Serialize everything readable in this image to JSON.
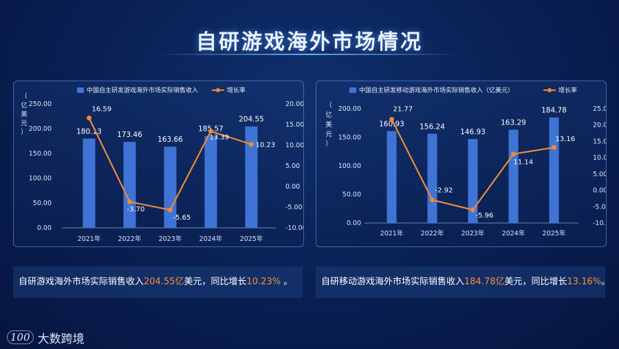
{
  "page": {
    "title": "自研游戏海外市场情况",
    "logo_text": "大数跨境",
    "logo_mark": "100"
  },
  "colors": {
    "bar": "#3f74d6",
    "line": "#ef8a36",
    "highlight": "#f3913a"
  },
  "captions": [
    {
      "pre": "自研游戏海外市场实际销售收入",
      "hl1": "204.55亿",
      "mid": "美元，同比增长",
      "hl2": "10.23%",
      "post": " 。"
    },
    {
      "pre": "自研移动游戏海外市场实际销售收入",
      "hl1": "184.78亿",
      "mid": "美元，同比增长",
      "hl2": "13.16%",
      "post": "。"
    }
  ],
  "chart_data": [
    {
      "type": "bar",
      "title": "",
      "ylabel": "（亿美元）",
      "categories": [
        "2021年",
        "2022年",
        "2023年",
        "2024年",
        "2025年"
      ],
      "series": [
        {
          "name": "中国自主研发游戏海外市场实际销售收入",
          "type": "bar",
          "values": [
            180.13,
            173.46,
            163.66,
            185.57,
            204.55
          ],
          "axis": "left"
        },
        {
          "name": "增长率",
          "type": "line",
          "values": [
            16.59,
            -3.7,
            -5.65,
            13.39,
            10.23
          ],
          "axis": "right"
        }
      ],
      "left_ticks": [
        "250.00",
        "200.00",
        "150.00",
        "100.00",
        "50.00",
        "0.00"
      ],
      "right_ticks": [
        "20.00",
        "15.00",
        "10.00",
        "5.00",
        "0.00",
        "-5.00",
        "-10.00"
      ],
      "ylim": [
        0,
        250
      ],
      "y2lim": [
        -10,
        20
      ],
      "legend": "top"
    },
    {
      "type": "bar",
      "title": "",
      "ylabel": "（亿美元）",
      "categories": [
        "2021年",
        "2022年",
        "2023年",
        "2024年",
        "2025年"
      ],
      "series": [
        {
          "name": "中国自主研发移动游戏海外市场实际销售收入（亿美元）",
          "type": "bar",
          "values": [
            160.93,
            156.24,
            146.93,
            163.29,
            184.78
          ],
          "axis": "left"
        },
        {
          "name": "增长率",
          "type": "line",
          "values": [
            21.77,
            -2.92,
            -5.96,
            11.14,
            13.16
          ],
          "axis": "right"
        }
      ],
      "left_ticks": [
        "200.00",
        "150.00",
        "100.00",
        "50.00",
        "0.00"
      ],
      "right_ticks": [
        "25.00",
        "20.00",
        "15.00",
        "10.00",
        "5.00",
        "0.00",
        "-5.00",
        "-10.00"
      ],
      "ylim": [
        0,
        200
      ],
      "y2lim": [
        -10,
        25
      ],
      "legend": "top"
    }
  ]
}
